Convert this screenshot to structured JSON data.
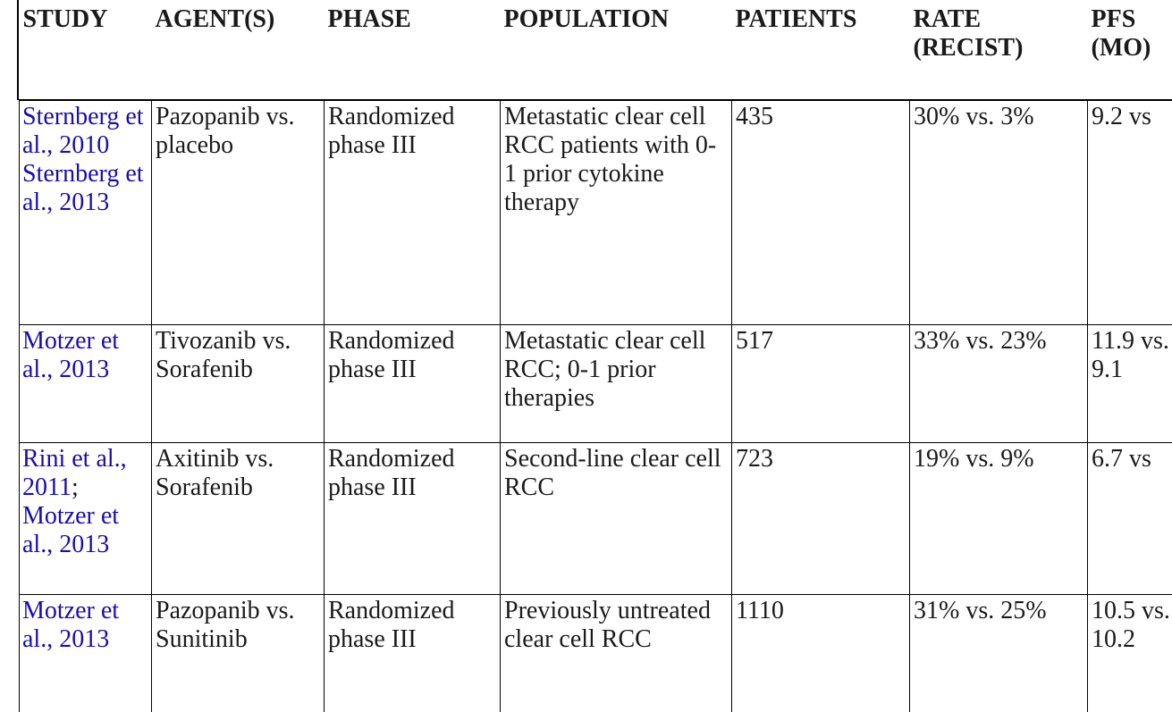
{
  "headers": [
    {
      "line1": "STUDY",
      "line2": ""
    },
    {
      "line1": "AGENT(S)",
      "line2": ""
    },
    {
      "line1": "PHASE",
      "line2": ""
    },
    {
      "line1": "POPULATION",
      "line2": ""
    },
    {
      "line1": "PATIENTS",
      "line2": ""
    },
    {
      "line1": "RATE",
      "line2": "(RECIST)"
    },
    {
      "line1": "PFS",
      "line2": "(MO)"
    }
  ],
  "rows": [
    {
      "study": [
        "Sternberg et al., 2010",
        "Sternberg et al., 2013"
      ],
      "agents": "Pazopanib vs. placebo",
      "phase": "Randomized phase III",
      "population": "Metastatic clear cell RCC patients with 0-1 prior cytokine therapy",
      "patients": "435",
      "rate": "30% vs. 3%",
      "pfs": "9.2 vs"
    },
    {
      "study": [
        "Motzer et al., 2013"
      ],
      "agents": "Tivozanib vs. Sorafenib",
      "phase": "Randomized phase III",
      "population": "Metastatic clear cell RCC; 0-1 prior therapies",
      "patients": "517",
      "rate": "33% vs. 23%",
      "pfs": "11.9 vs. 9.1"
    },
    {
      "study": [
        "Rini et al., 2011",
        "Motzer et al., 2013"
      ],
      "agents": "Axitinib vs. Sorafenib",
      "phase": "Randomized phase III",
      "population": "Second-line clear cell RCC",
      "patients": "723",
      "rate": "19% vs. 9%",
      "pfs": "6.7 vs"
    },
    {
      "study": [
        "Motzer et al., 2013"
      ],
      "agents": "Pazopanib vs. Sunitinib",
      "phase": "Randomized phase III",
      "population": "Previously untreated clear cell RCC",
      "patients": "1110",
      "rate": "31% vs. 25%",
      "pfs": "10.5 vs. 10.2"
    }
  ],
  "colors": {
    "link": "#1a0dab",
    "text": "#1a1a1a",
    "rule": "#000000"
  }
}
